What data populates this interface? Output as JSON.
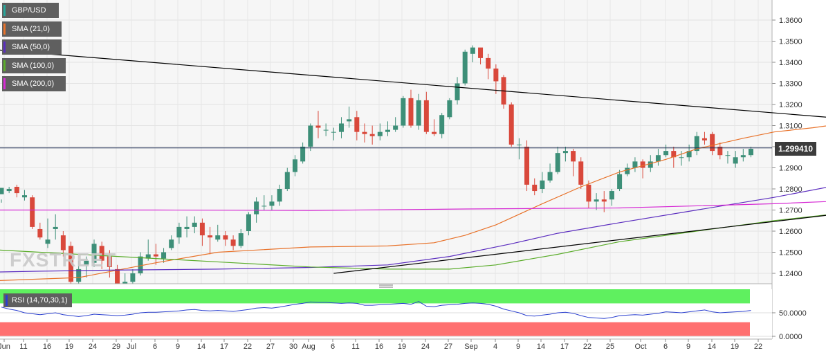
{
  "chart_data": {
    "type": "candlestick",
    "symbol": "GBP/USD",
    "ylim": [
      1.235,
      1.37
    ],
    "yticks": [
      "1.2400",
      "1.2500",
      "1.2600",
      "1.2700",
      "1.2800",
      "1.2900",
      "1.3000",
      "1.3100",
      "1.3200",
      "1.3300",
      "1.3400",
      "1.3500",
      "1.3600"
    ],
    "yticks_values": [
      1.24,
      1.25,
      1.26,
      1.27,
      1.28,
      1.29,
      1.3,
      1.31,
      1.32,
      1.33,
      1.34,
      1.35,
      1.36
    ],
    "xtick_labels": [
      "Jun",
      "11",
      "16",
      "19",
      "24",
      "29",
      "Jul",
      "6",
      "9",
      "14",
      "17",
      "22",
      "27",
      "30",
      "Aug",
      "6",
      "11",
      "16",
      "19",
      "24",
      "27",
      "Sep",
      "4",
      "9",
      "14",
      "17",
      "22",
      "25",
      "Oct",
      "6",
      "9",
      "14",
      "19",
      "22"
    ],
    "last_price": "1.299410",
    "last_price_value": 1.29941,
    "candles": [
      [
        1.2775,
        1.2805,
        1.275,
        1.2735
      ],
      [
        1.279,
        1.28,
        1.281,
        1.278
      ],
      [
        1.281,
        1.278,
        1.282,
        1.276
      ],
      [
        1.276,
        1.277,
        1.2795,
        1.2745
      ],
      [
        1.276,
        1.262,
        1.277,
        1.261
      ],
      [
        1.261,
        1.257,
        1.264,
        1.256
      ],
      [
        1.254,
        1.256,
        1.266,
        1.252
      ],
      [
        1.261,
        1.262,
        1.268,
        1.256
      ],
      [
        1.258,
        1.251,
        1.26,
        1.248
      ],
      [
        1.253,
        1.236,
        1.255,
        1.234
      ],
      [
        1.236,
        1.242,
        1.246,
        1.233
      ],
      [
        1.244,
        1.246,
        1.248,
        1.238
      ],
      [
        1.245,
        1.254,
        1.256,
        1.243
      ],
      [
        1.253,
        1.246,
        1.255,
        1.242
      ],
      [
        1.248,
        1.243,
        1.251,
        1.238
      ],
      [
        1.242,
        1.232,
        1.244,
        1.23
      ],
      [
        1.234,
        1.236,
        1.24,
        1.231
      ],
      [
        1.236,
        1.24,
        1.242,
        1.235
      ],
      [
        1.24,
        1.248,
        1.25,
        1.239
      ],
      [
        1.247,
        1.249,
        1.256,
        1.246
      ],
      [
        1.249,
        1.248,
        1.254,
        1.244
      ],
      [
        1.247,
        1.25,
        1.252,
        1.245
      ],
      [
        1.252,
        1.256,
        1.258,
        1.251
      ],
      [
        1.257,
        1.262,
        1.264,
        1.254
      ],
      [
        1.261,
        1.262,
        1.267,
        1.257
      ],
      [
        1.262,
        1.264,
        1.267,
        1.259
      ],
      [
        1.264,
        1.258,
        1.266,
        1.253
      ],
      [
        1.258,
        1.257,
        1.262,
        1.249
      ],
      [
        1.256,
        1.258,
        1.263,
        1.255
      ],
      [
        1.258,
        1.256,
        1.26,
        1.253
      ],
      [
        1.256,
        1.253,
        1.258,
        1.251
      ],
      [
        1.253,
        1.259,
        1.261,
        1.252
      ],
      [
        1.26,
        1.268,
        1.269,
        1.258
      ],
      [
        1.268,
        1.274,
        1.276,
        1.264
      ],
      [
        1.272,
        1.272,
        1.277,
        1.27
      ],
      [
        1.272,
        1.274,
        1.277,
        1.27
      ],
      [
        1.274,
        1.28,
        1.282,
        1.272
      ],
      [
        1.28,
        1.288,
        1.29,
        1.279
      ],
      [
        1.288,
        1.294,
        1.296,
        1.286
      ],
      [
        1.293,
        1.3,
        1.302,
        1.292
      ],
      [
        1.3,
        1.31,
        1.311,
        1.298
      ],
      [
        1.31,
        1.309,
        1.317,
        1.304
      ],
      [
        1.308,
        1.308,
        1.311,
        1.305
      ],
      [
        1.307,
        1.307,
        1.309,
        1.303
      ],
      [
        1.307,
        1.311,
        1.314,
        1.304
      ],
      [
        1.312,
        1.313,
        1.319,
        1.309
      ],
      [
        1.314,
        1.307,
        1.317,
        1.303
      ],
      [
        1.307,
        1.306,
        1.311,
        1.302
      ],
      [
        1.306,
        1.305,
        1.31,
        1.301
      ],
      [
        1.305,
        1.307,
        1.311,
        1.303
      ],
      [
        1.307,
        1.308,
        1.312,
        1.305
      ],
      [
        1.308,
        1.31,
        1.314,
        1.307
      ],
      [
        1.31,
        1.323,
        1.324,
        1.309
      ],
      [
        1.323,
        1.31,
        1.327,
        1.309
      ],
      [
        1.31,
        1.322,
        1.325,
        1.308
      ],
      [
        1.322,
        1.307,
        1.326,
        1.306
      ],
      [
        1.307,
        1.306,
        1.313,
        1.305
      ],
      [
        1.306,
        1.315,
        1.316,
        1.304
      ],
      [
        1.314,
        1.322,
        1.323,
        1.313
      ],
      [
        1.322,
        1.33,
        1.333,
        1.32
      ],
      [
        1.33,
        1.345,
        1.346,
        1.329
      ],
      [
        1.344,
        1.347,
        1.348,
        1.34
      ],
      [
        1.347,
        1.342,
        1.346,
        1.339
      ],
      [
        1.342,
        1.337,
        1.344,
        1.332
      ],
      [
        1.337,
        1.331,
        1.339,
        1.325
      ],
      [
        1.333,
        1.32,
        1.334,
        1.318
      ],
      [
        1.32,
        1.301,
        1.321,
        1.3
      ],
      [
        1.301,
        1.301,
        1.304,
        1.294
      ],
      [
        1.3,
        1.282,
        1.303,
        1.279
      ],
      [
        1.282,
        1.279,
        1.285,
        1.277
      ],
      [
        1.28,
        1.284,
        1.288,
        1.278
      ],
      [
        1.284,
        1.288,
        1.292,
        1.283
      ],
      [
        1.288,
        1.297,
        1.3,
        1.287
      ],
      [
        1.297,
        1.298,
        1.3,
        1.293
      ],
      [
        1.298,
        1.293,
        1.299,
        1.286
      ],
      [
        1.293,
        1.282,
        1.295,
        1.28
      ],
      [
        1.282,
        1.274,
        1.284,
        1.271
      ],
      [
        1.274,
        1.275,
        1.278,
        1.27
      ],
      [
        1.275,
        1.274,
        1.279,
        1.269
      ],
      [
        1.275,
        1.279,
        1.28,
        1.272
      ],
      [
        1.28,
        1.287,
        1.289,
        1.279
      ],
      [
        1.287,
        1.29,
        1.292,
        1.286
      ],
      [
        1.29,
        1.293,
        1.295,
        1.288
      ],
      [
        1.293,
        1.29,
        1.294,
        1.285
      ],
      [
        1.29,
        1.293,
        1.296,
        1.288
      ],
      [
        1.293,
        1.296,
        1.299,
        1.291
      ],
      [
        1.296,
        1.298,
        1.301,
        1.295
      ],
      [
        1.298,
        1.295,
        1.3,
        1.29
      ],
      [
        1.295,
        1.295,
        1.298,
        1.291
      ],
      [
        1.295,
        1.298,
        1.301,
        1.293
      ],
      [
        1.298,
        1.305,
        1.307,
        1.296
      ],
      [
        1.304,
        1.303,
        1.307,
        1.301
      ],
      [
        1.306,
        1.298,
        1.307,
        1.296
      ],
      [
        1.3,
        1.296,
        1.302,
        1.294
      ],
      [
        1.296,
        1.296,
        1.298,
        1.292
      ],
      [
        1.292,
        1.295,
        1.298,
        1.29
      ],
      [
        1.295,
        1.296,
        1.299,
        1.293
      ],
      [
        1.296,
        1.299,
        1.3,
        1.295
      ]
    ],
    "series": [
      {
        "name": "SMA (21,0)",
        "color": "#e8722a",
        "points": [
          [
            -30,
            1.232
          ],
          [
            -8,
            1.2355
          ],
          [
            10,
            1.238
          ],
          [
            20,
            1.245
          ],
          [
            28,
            1.25
          ],
          [
            40,
            1.2525
          ],
          [
            50,
            1.253
          ],
          [
            56,
            1.2545
          ],
          [
            60,
            1.258
          ],
          [
            64,
            1.263
          ],
          [
            70,
            1.273
          ],
          [
            75,
            1.281
          ],
          [
            80,
            1.288
          ],
          [
            86,
            1.294
          ],
          [
            90,
            1.299
          ],
          [
            96,
            1.304
          ],
          [
            100,
            1.307
          ],
          [
            105,
            1.309
          ],
          [
            111,
            1.312
          ],
          [
            114,
            1.315
          ],
          [
            118,
            1.318
          ],
          [
            122,
            1.32
          ],
          [
            126,
            1.32
          ],
          [
            128,
            1.319
          ],
          [
            132,
            1.314
          ],
          [
            136,
            1.307
          ],
          [
            140,
            1.301
          ],
          [
            144,
            1.294
          ],
          [
            148,
            1.29
          ],
          [
            152,
            1.2885
          ],
          [
            156,
            1.289
          ],
          [
            160,
            1.2905
          ]
        ]
      },
      {
        "name": "SMA (50,0)",
        "color": "#5b2dbf",
        "points": [
          [
            -30,
            1.238
          ],
          [
            -10,
            1.24
          ],
          [
            5,
            1.241
          ],
          [
            14,
            1.2415
          ],
          [
            28,
            1.242
          ],
          [
            40,
            1.2428
          ],
          [
            50,
            1.244
          ],
          [
            58,
            1.248
          ],
          [
            66,
            1.254
          ],
          [
            72,
            1.259
          ],
          [
            80,
            1.264
          ],
          [
            90,
            1.27
          ],
          [
            100,
            1.276
          ],
          [
            110,
            1.283
          ],
          [
            118,
            1.291
          ],
          [
            124,
            1.296
          ],
          [
            130,
            1.299
          ],
          [
            136,
            1.301
          ],
          [
            142,
            1.302
          ],
          [
            148,
            1.3018
          ],
          [
            152,
            1.301
          ],
          [
            156,
            1.3005
          ],
          [
            160,
            1.3
          ]
        ]
      },
      {
        "name": "SMA (100,0)",
        "color": "#5aac2a",
        "points": [
          [
            -30,
            1.257
          ],
          [
            -15,
            1.254
          ],
          [
            0,
            1.251
          ],
          [
            10,
            1.249
          ],
          [
            20,
            1.247
          ],
          [
            30,
            1.245
          ],
          [
            40,
            1.243
          ],
          [
            50,
            1.242
          ],
          [
            58,
            1.242
          ],
          [
            64,
            1.244
          ],
          [
            72,
            1.249
          ],
          [
            80,
            1.255
          ],
          [
            90,
            1.26
          ],
          [
            100,
            1.265
          ],
          [
            110,
            1.269
          ],
          [
            120,
            1.272
          ],
          [
            130,
            1.274
          ],
          [
            140,
            1.278
          ],
          [
            150,
            1.282
          ],
          [
            160,
            1.285
          ]
        ]
      },
      {
        "name": "SMA (200,0)",
        "color": "#d62ad4",
        "points": [
          [
            -30,
            1.269
          ],
          [
            -15,
            1.2695
          ],
          [
            0,
            1.27
          ],
          [
            20,
            1.27
          ],
          [
            40,
            1.2698
          ],
          [
            60,
            1.2705
          ],
          [
            80,
            1.271
          ],
          [
            100,
            1.273
          ],
          [
            110,
            1.2745
          ],
          [
            118,
            1.2745
          ],
          [
            126,
            1.2735
          ],
          [
            134,
            1.2725
          ],
          [
            142,
            1.272
          ],
          [
            150,
            1.2715
          ],
          [
            160,
            1.271
          ]
        ]
      }
    ],
    "trendlines": [
      {
        "from": [
          -48,
          1.36
        ],
        "to": [
          164,
          1.297
        ],
        "color": "#000000"
      },
      {
        "from": [
          43,
          1.24
        ],
        "to": [
          166,
          1.293
        ],
        "color": "#000000"
      }
    ],
    "rsi": {
      "label": "RSI (14,70,30,1)",
      "ylim": [
        0,
        100
      ],
      "yticks": [
        "50.0000",
        "0.0000"
      ],
      "yticks_values": [
        50,
        0
      ],
      "overbought_color": "#5ff05f",
      "oversold_color": "#ff7070",
      "line_color": "#2a3fcf",
      "values": [
        62,
        58,
        55,
        50,
        48,
        46,
        48,
        50,
        46,
        44,
        42,
        44,
        47,
        46,
        45,
        44,
        45,
        47,
        50,
        51,
        51,
        52,
        53,
        54,
        56,
        57,
        55,
        54,
        55,
        54,
        53,
        55,
        57,
        60,
        61,
        60,
        62,
        65,
        68,
        70,
        73,
        72,
        72,
        71,
        70,
        71,
        70,
        66,
        66,
        67,
        68,
        69,
        70,
        68,
        74,
        64,
        63,
        66,
        67,
        68,
        70,
        71,
        70,
        68,
        64,
        58,
        54,
        50,
        44,
        43,
        45,
        47,
        50,
        51,
        49,
        44,
        40,
        39,
        38,
        40,
        44,
        45,
        46,
        45,
        47,
        49,
        52,
        51,
        50,
        52,
        54,
        56,
        52,
        50,
        51,
        52,
        53,
        55
      ]
    }
  },
  "legend": [
    "GBP/USD",
    "SMA (21,0)",
    "SMA (50,0)",
    "SMA (100,0)",
    "SMA (200,0)"
  ],
  "legend_colors": [
    "#26a69a",
    "#e8722a",
    "#5b2dbf",
    "#5aac2a",
    "#d62ad4"
  ],
  "watermark": "FXSTREET",
  "candle_colors": {
    "up": "#3d8f78",
    "down": "#d9483b"
  }
}
